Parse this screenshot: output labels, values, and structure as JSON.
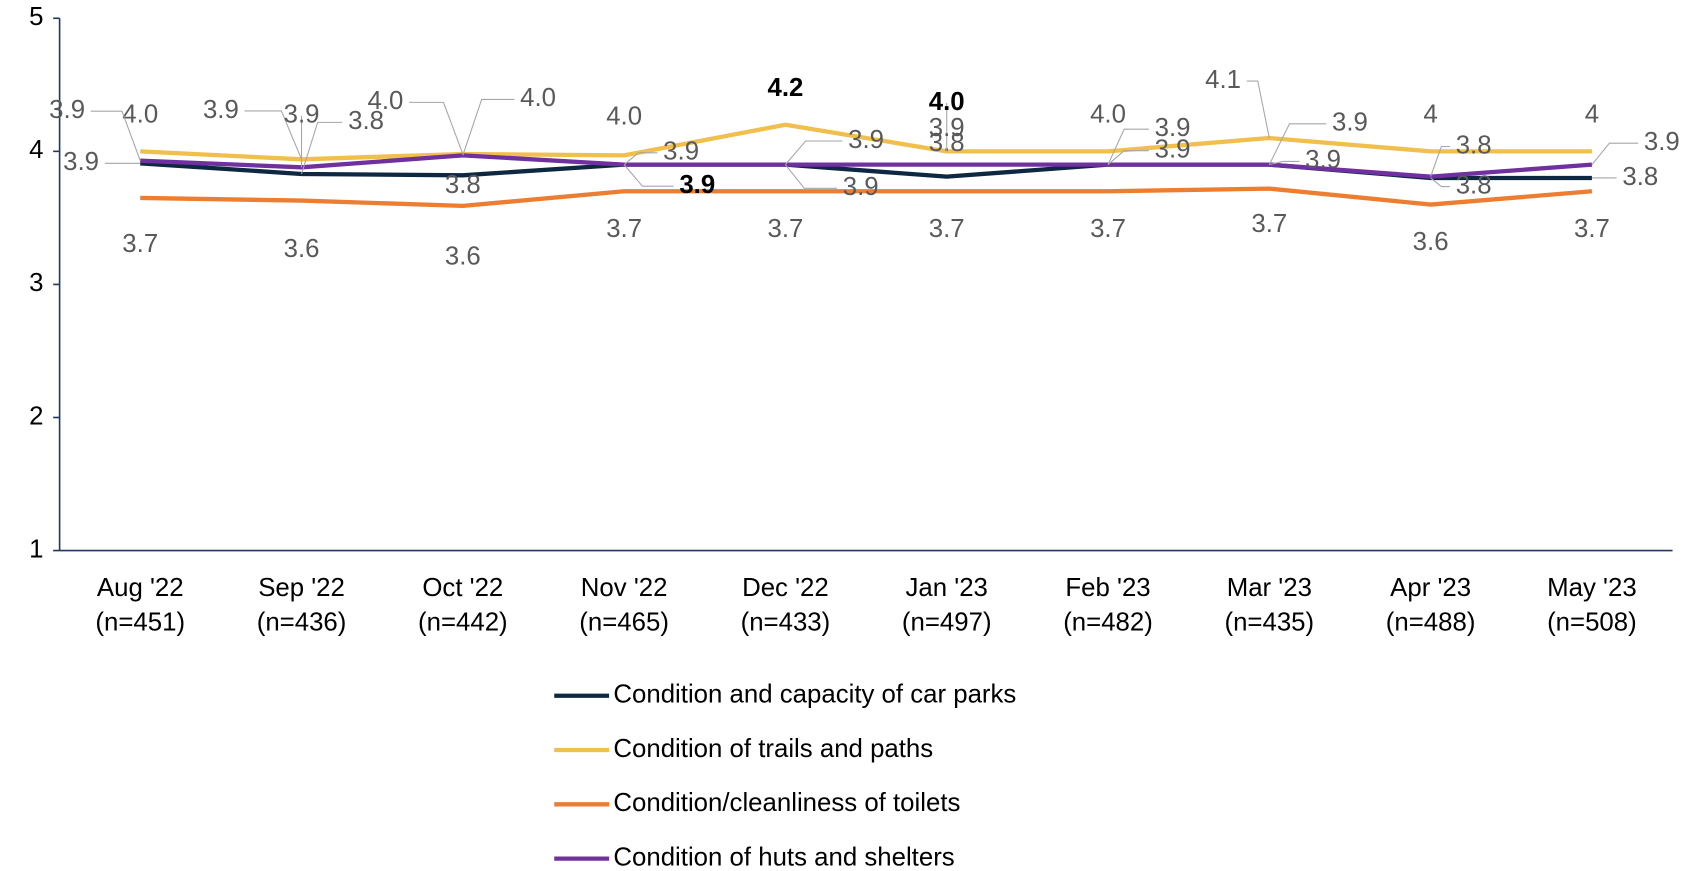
{
  "chart_data": {
    "type": "line",
    "categories": [
      [
        "Aug '22",
        "(n=451)"
      ],
      [
        "Sep '22",
        "(n=436)"
      ],
      [
        "Oct '22",
        "(n=442)"
      ],
      [
        "Nov '22",
        "(n=465)"
      ],
      [
        "Dec '22",
        "(n=433)"
      ],
      [
        "Jan '23",
        "(n=497)"
      ],
      [
        "Feb '23",
        "(n=482)"
      ],
      [
        "Mar '23",
        "(n=435)"
      ],
      [
        "Apr '23",
        "(n=488)"
      ],
      [
        "May '23",
        "(n=508)"
      ]
    ],
    "ylim": [
      1,
      5
    ],
    "yticks": [
      1,
      2,
      3,
      4,
      5
    ],
    "grid": false,
    "legend": "bottom",
    "series": [
      {
        "name": "Condition and capacity of car parks",
        "color": "#0e2841",
        "values": [
          3.91,
          3.83,
          3.82,
          3.9,
          3.9,
          3.81,
          3.9,
          3.9,
          3.8,
          3.8
        ],
        "value_labels": [
          "3.9",
          "3.8",
          "3.8",
          "3.9",
          "3.9",
          "3.8",
          "3.9",
          "3.9",
          "3.8",
          "3.8"
        ],
        "label_colors": [
          null,
          null,
          null,
          null,
          null,
          null,
          null,
          null,
          null,
          null
        ]
      },
      {
        "name": "Condition of trails and paths",
        "color": "#f0bf4c",
        "values": [
          4.0,
          3.94,
          3.98,
          3.97,
          4.2,
          4.0,
          4.0,
          4.1,
          4.0,
          4.0
        ],
        "value_labels": [
          "4.0",
          "3.9",
          "4.0",
          "4.0",
          "4.2",
          "4.0",
          "4.0",
          "4.1",
          "4",
          "4"
        ],
        "label_colors": [
          null,
          null,
          null,
          null,
          "#00b050",
          "#ff0000",
          null,
          null,
          null,
          null
        ]
      },
      {
        "name": "Condition/cleanliness of toilets",
        "color": "#ed7d31",
        "values": [
          3.65,
          3.63,
          3.59,
          3.7,
          3.7,
          3.7,
          3.7,
          3.72,
          3.6,
          3.7
        ],
        "value_labels": [
          "3.7",
          "3.6",
          "3.6",
          "3.7",
          "3.7",
          "3.7",
          "3.7",
          "3.7",
          "3.6",
          "3.7"
        ],
        "label_colors": [
          null,
          null,
          null,
          null,
          null,
          null,
          null,
          null,
          null,
          null
        ]
      },
      {
        "name": "Condition of huts and shelters",
        "color": "#7030a0",
        "values": [
          3.93,
          3.88,
          3.97,
          3.9,
          3.9,
          3.9,
          3.9,
          3.9,
          3.81,
          3.9
        ],
        "value_labels": [
          "3.9",
          "3.9",
          "4.0",
          "3.9",
          "3.9",
          "3.9",
          "3.9",
          "3.9",
          "3.8",
          "3.9"
        ],
        "label_colors": [
          null,
          null,
          null,
          "#00b050",
          null,
          null,
          null,
          null,
          null,
          null
        ]
      }
    ]
  }
}
